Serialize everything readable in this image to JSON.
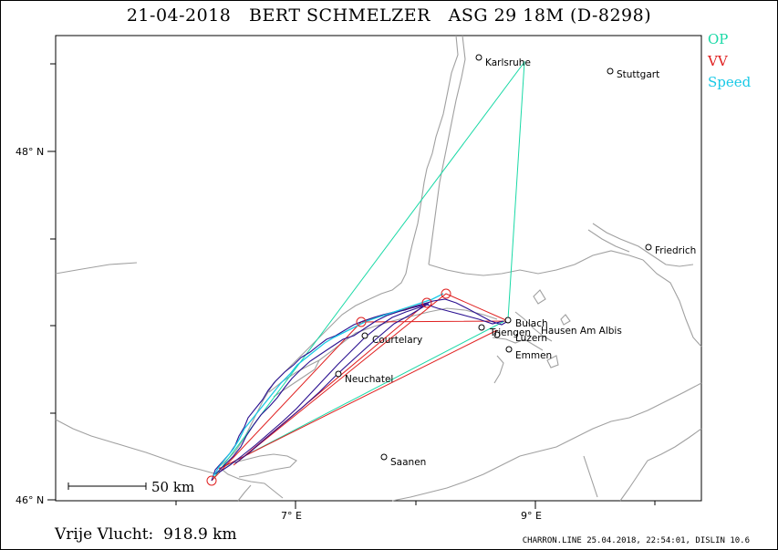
{
  "title": {
    "date": "21-04-2018",
    "pilot": "BERT SCHMELZER",
    "glider": "ASG 29 18M (D-8298)"
  },
  "legend": [
    {
      "label": "OP",
      "color": "#19d9a6"
    },
    {
      "label": "VV",
      "color": "#e02020"
    },
    {
      "label": "Speed",
      "color": "#19c9e6"
    }
  ],
  "axes": {
    "lat_labels": [
      "48° N",
      "46° N"
    ],
    "lon_labels": [
      "7° E",
      "9° E"
    ]
  },
  "scale_bar": {
    "label": "50 km"
  },
  "cities": [
    {
      "name": "Karlsruhe"
    },
    {
      "name": "Stuttgart"
    },
    {
      "name": "Friedrich"
    },
    {
      "name": "Bulach"
    },
    {
      "name": "Hausen Am Albis"
    },
    {
      "name": "Luzern"
    },
    {
      "name": "Emmen"
    },
    {
      "name": "Triengen"
    },
    {
      "name": "Courtelary"
    },
    {
      "name": "Neuchatel"
    },
    {
      "name": "Saanen"
    }
  ],
  "flight_distance": {
    "label": "Vrije Vlucht:",
    "value": "918.9 km"
  },
  "footer": {
    "text": "CHARRON.LINE 25.04.2018, 22:54:01, DISLIN 10.6"
  },
  "colors": {
    "track": "#2a1090",
    "speed_track": "#19c9e6",
    "op_line": "#19d9a6",
    "vv_line": "#e02020",
    "background_lines": "#a0a0a0",
    "frame": "#000000"
  }
}
